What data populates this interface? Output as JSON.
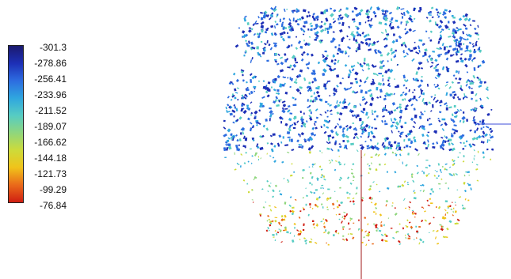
{
  "colorbar": {
    "ticks": [
      "-301.3",
      "-278.86",
      "-256.41",
      "-233.96",
      "-211.52",
      "-189.07",
      "-166.62",
      "-144.18",
      "-121.73",
      "-99.29",
      "-76.84"
    ],
    "colormap_stops": [
      "#1b1a6e",
      "#1d2fb6",
      "#2d6ce0",
      "#2fa6df",
      "#56ccc3",
      "#8fd67d",
      "#cddb3a",
      "#f0c31a",
      "#ea6a1a",
      "#cf1e12"
    ]
  },
  "scene": {
    "axis_color": "#b04040",
    "horizontal_axis_color": "#3c4cd8"
  }
}
